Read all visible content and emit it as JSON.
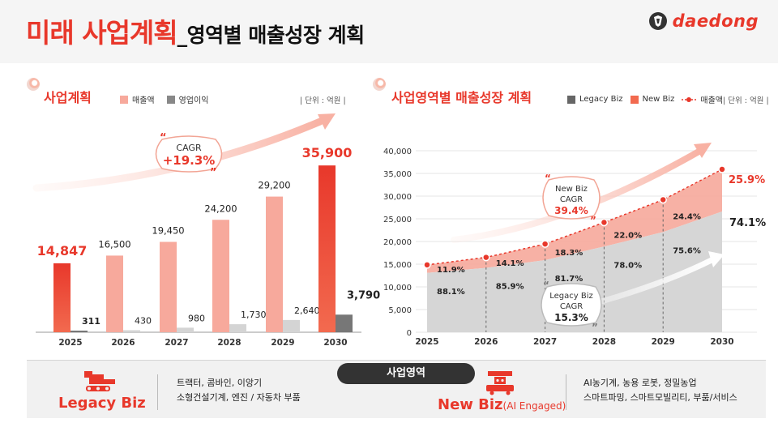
{
  "header": {
    "title_red": "미래 사업계획",
    "title_sub": "_영역별 매출성장 계획",
    "brand": "daedong"
  },
  "left": {
    "title": "사업계획",
    "legend_sales": "매출액",
    "legend_profit": "영업이익",
    "unit": "| 단위 : 억원 |",
    "cagr_label": "CAGR",
    "cagr_value": "+19.3%"
  },
  "right": {
    "title": "사업영역별 매출성장 계획",
    "legend_legacy": "Legacy Biz",
    "legend_new": "New Biz",
    "legend_sales": "매출액",
    "unit": "| 단위 : 억원 |",
    "cagr_new": [
      "New Biz",
      "CAGR",
      "39.4%"
    ],
    "cagr_legacy": [
      "Legacy Biz",
      "CAGR",
      "15.3%"
    ]
  },
  "bottom": {
    "pill": "사업영역",
    "legacy_name": "Legacy Biz",
    "legacy_desc1": "트랙터, 콤바인, 이앙기",
    "legacy_desc2": "소형건설기계, 엔진 / 자동차 부품",
    "new_name": "New Biz",
    "new_paren": "(AI Engaged)",
    "new_desc1": "AI농기계, 농용 로봇, 정밀농업",
    "new_desc2": "스마트파밍, 스마트모빌리티, 부품/서비스"
  },
  "colors": {
    "accent": "#e8382b",
    "sales_bar": "#f7a99c",
    "profit_bar": "#d4d4d4",
    "legacy_area": "#d6d6d6",
    "new_area": "#f6a89b",
    "dark_bar": "#777777"
  },
  "chart_data": [
    {
      "type": "bar",
      "title": "사업계획",
      "categories": [
        "2025",
        "2026",
        "2027",
        "2028",
        "2029",
        "2030"
      ],
      "series": [
        {
          "name": "매출액",
          "values": [
            14847,
            16500,
            19450,
            24200,
            29200,
            35900
          ],
          "labels": [
            "14,847",
            "16,500",
            "19,450",
            "24,200",
            "29,200",
            "35,900"
          ]
        },
        {
          "name": "영업이익",
          "values": [
            311,
            430,
            980,
            1730,
            2640,
            3790
          ],
          "labels": [
            "311",
            "430",
            "980",
            "1,730",
            "2,640",
            "3,790"
          ]
        }
      ],
      "ylim": [
        0,
        45000
      ]
    },
    {
      "type": "area",
      "title": "사업영역별 매출성장 계획",
      "x": [
        "2025",
        "2026",
        "2027",
        "2028",
        "2029",
        "2030"
      ],
      "yticks": [
        "0",
        "5,000",
        "10,000",
        "15,000",
        "20,000",
        "25,000",
        "30,000",
        "35,000",
        "40,000"
      ],
      "ylim": [
        0,
        40000
      ],
      "total": [
        14847,
        16500,
        19450,
        24200,
        29200,
        35900
      ],
      "series": [
        {
          "name": "Legacy Biz",
          "share_labels": [
            "88.1%",
            "85.9%",
            "81.7%",
            "78.0%",
            "75.6%",
            "74.1%"
          ],
          "share": [
            88.1,
            85.9,
            81.7,
            78.0,
            75.6,
            74.1
          ]
        },
        {
          "name": "New Biz",
          "share_labels": [
            "11.9%",
            "14.1%",
            "18.3%",
            "22.0%",
            "24.4%",
            "25.9%"
          ],
          "share": [
            11.9,
            14.1,
            18.3,
            22.0,
            24.4,
            25.9
          ]
        }
      ]
    }
  ]
}
